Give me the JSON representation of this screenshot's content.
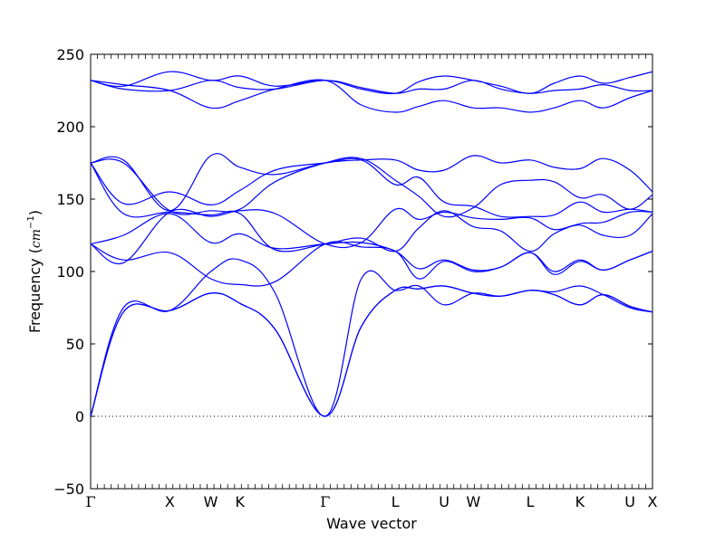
{
  "chart_data": {
    "type": "line",
    "title": "",
    "xlabel": "Wave vector",
    "ylabel": "Frequency (cm⁻¹)",
    "ylabel_parts": {
      "text": "Frequency (",
      "unit": "cm",
      "exp": "−1",
      "close": ")"
    },
    "xlim": [
      0,
      13.7
    ],
    "ylim": [
      -50,
      250
    ],
    "y_ticks": [
      -50,
      0,
      50,
      100,
      150,
      200,
      250
    ],
    "x_ticks": [
      {
        "label": "Γ",
        "x": 0
      },
      {
        "label": "X",
        "x": 1.93
      },
      {
        "label": "W",
        "x": 2.93
      },
      {
        "label": "K",
        "x": 3.64
      },
      {
        "label": "Γ",
        "x": 5.72
      },
      {
        "label": "L",
        "x": 7.43
      },
      {
        "label": "U",
        "x": 8.62
      },
      {
        "label": "W",
        "x": 9.33
      },
      {
        "label": "L",
        "x": 10.72
      },
      {
        "label": "K",
        "x": 11.93
      },
      {
        "label": "U",
        "x": 13.15
      },
      {
        "label": "X",
        "x": 13.7
      }
    ],
    "zero_line": {
      "value": 0,
      "style": "dotted"
    },
    "grid": false,
    "line_color": "#0000ff",
    "x": [
      0,
      0.8,
      1.93,
      2.93,
      3.64,
      4.5,
      5.72,
      6.6,
      7.43,
      8.0,
      8.62,
      9.33,
      10.0,
      10.72,
      11.3,
      11.93,
      12.5,
      13.15,
      13.7
    ],
    "series": [
      {
        "values": [
          0,
          72,
          73,
          85,
          78,
          60,
          0,
          62,
          87,
          88,
          90,
          85,
          83,
          87,
          84,
          77,
          84,
          76,
          72
        ]
      },
      {
        "values": [
          0,
          72,
          73,
          85,
          78,
          60,
          0,
          62,
          87,
          88,
          90,
          85,
          83,
          87,
          84,
          77,
          84,
          76,
          72
        ]
      },
      {
        "values": [
          0,
          75,
          73,
          100,
          108,
          85,
          0,
          95,
          87,
          90,
          77,
          85,
          83,
          87,
          86,
          90,
          84,
          75,
          72
        ]
      },
      {
        "values": [
          119,
          108,
          113,
          95,
          91,
          93,
          119,
          117,
          114,
          95,
          107,
          100,
          103,
          113,
          98,
          107,
          101,
          108,
          114
        ]
      },
      {
        "values": [
          119,
          125,
          140,
          120,
          126,
          116,
          119,
          120,
          114,
          102,
          108,
          101,
          103,
          113,
          100,
          108,
          101,
          108,
          114
        ]
      },
      {
        "values": [
          119,
          106,
          141,
          138,
          142,
          140,
          119,
          120,
          143,
          136,
          141,
          137,
          136,
          137,
          129,
          132,
          125,
          125,
          140
        ]
      },
      {
        "values": [
          175,
          140,
          141,
          139,
          140,
          115,
          119,
          123,
          114,
          130,
          142,
          131,
          128,
          114,
          126,
          133,
          134,
          141,
          141
        ]
      },
      {
        "values": [
          175,
          147,
          155,
          146,
          156,
          170,
          175,
          177,
          160,
          165,
          148,
          145,
          138,
          138,
          139,
          148,
          141,
          143,
          141
        ]
      },
      {
        "values": [
          175,
          175,
          142,
          142,
          143,
          162,
          175,
          178,
          163,
          152,
          138,
          144,
          160,
          163,
          162,
          151,
          153,
          143,
          153
        ]
      },
      {
        "values": [
          175,
          177,
          142,
          180,
          172,
          167,
          175,
          177,
          177,
          170,
          170,
          180,
          175,
          177,
          172,
          171,
          178,
          170,
          155
        ]
      },
      {
        "values": [
          232,
          229,
          225,
          213,
          218,
          226,
          232,
          215,
          210,
          214,
          218,
          213,
          213,
          210,
          213,
          218,
          213,
          220,
          225
        ]
      },
      {
        "values": [
          232,
          226,
          225,
          232,
          227,
          226,
          232,
          227,
          223,
          226,
          226,
          232,
          226,
          223,
          225,
          226,
          229,
          225,
          225
        ]
      },
      {
        "values": [
          232,
          228,
          238,
          232,
          235,
          228,
          232,
          226,
          223,
          231,
          235,
          232,
          228,
          223,
          230,
          235,
          230,
          234,
          238
        ]
      }
    ]
  }
}
